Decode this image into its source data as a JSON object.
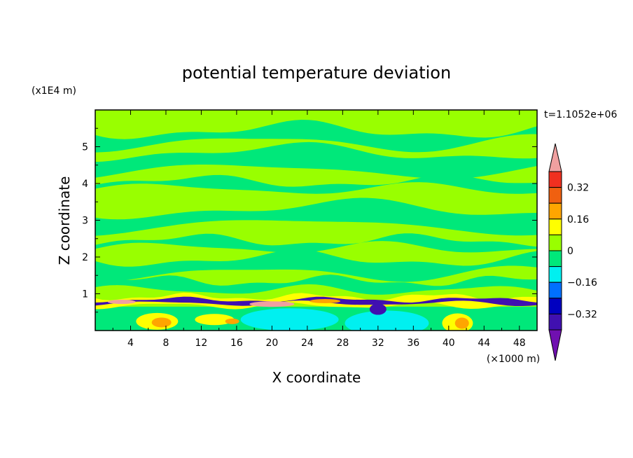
{
  "chart_data": {
    "type": "heatmap",
    "title": "potential temperature deviation",
    "xlabel": "X coordinate",
    "ylabel": "Z coordinate",
    "x_unit": "(×1000 m)",
    "y_unit": "(x1E4 m)",
    "time_label": "t=1.1052e+06",
    "xlim": [
      0,
      50
    ],
    "ylim": [
      0,
      6
    ],
    "x_ticks": [
      "4",
      "8",
      "12",
      "16",
      "20",
      "24",
      "28",
      "32",
      "36",
      "40",
      "44",
      "48"
    ],
    "y_ticks": [
      "1",
      "2",
      "3",
      "4",
      "5"
    ],
    "colorbar": {
      "labels": [
        "0.32",
        "0.16",
        "0",
        "−0.16",
        "−0.32"
      ],
      "levels": [
        {
          "lower": 0.4,
          "upper": null,
          "color": "#f0a0a0"
        },
        {
          "lower": 0.32,
          "upper": 0.4,
          "color": "#f03020"
        },
        {
          "lower": 0.24,
          "upper": 0.32,
          "color": "#f06010"
        },
        {
          "lower": 0.16,
          "upper": 0.24,
          "color": "#ffa500"
        },
        {
          "lower": 0.08,
          "upper": 0.16,
          "color": "#ffff00"
        },
        {
          "lower": 0.0,
          "upper": 0.08,
          "color": "#99ff00"
        },
        {
          "lower": -0.08,
          "upper": 0.0,
          "color": "#00e87a"
        },
        {
          "lower": -0.16,
          "upper": -0.08,
          "color": "#00f0f0"
        },
        {
          "lower": -0.24,
          "upper": -0.16,
          "color": "#0070ff"
        },
        {
          "lower": -0.32,
          "upper": -0.24,
          "color": "#0000c0"
        },
        {
          "lower": -0.4,
          "upper": -0.32,
          "color": "#4010b0"
        },
        {
          "lower": null,
          "upper": -0.4,
          "color": "#7010b0"
        }
      ]
    },
    "fields": [
      {
        "value": 0.04,
        "description": "upper layer, 0 to 0.08"
      },
      {
        "value": -0.04,
        "description": "banded layers, -0.08 to 0"
      },
      {
        "value": -0.12,
        "description": "near-surface, -0.16 to -0.08"
      },
      {
        "value": 0.12,
        "description": "near-surface, 0.08 to 0.16"
      },
      {
        "value": 0.2,
        "description": "near-surface, 0.16 to 0.24"
      },
      {
        "value": -0.36,
        "description": "inversion band near z≈0.75, -0.40 to -0.32"
      },
      {
        "value": 0.44,
        "description": "inversion band near z≈0.75, above 0.40"
      }
    ]
  }
}
